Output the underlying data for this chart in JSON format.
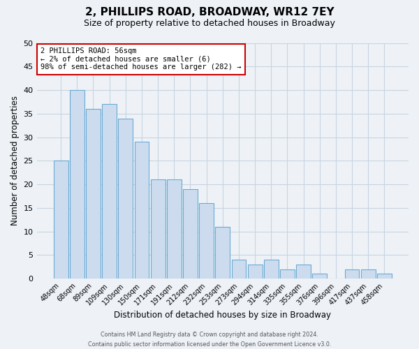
{
  "title": "2, PHILLIPS ROAD, BROADWAY, WR12 7EY",
  "subtitle": "Size of property relative to detached houses in Broadway",
  "xlabel": "Distribution of detached houses by size in Broadway",
  "ylabel": "Number of detached properties",
  "bar_labels": [
    "48sqm",
    "68sqm",
    "89sqm",
    "109sqm",
    "130sqm",
    "150sqm",
    "171sqm",
    "191sqm",
    "212sqm",
    "232sqm",
    "253sqm",
    "273sqm",
    "294sqm",
    "314sqm",
    "335sqm",
    "355sqm",
    "376sqm",
    "396sqm",
    "417sqm",
    "437sqm",
    "458sqm"
  ],
  "bar_values": [
    25,
    40,
    36,
    37,
    34,
    29,
    21,
    21,
    19,
    16,
    11,
    4,
    3,
    4,
    2,
    3,
    1,
    0,
    2,
    2,
    1
  ],
  "bar_color": "#ccdcee",
  "bar_edge_color": "#6aaad4",
  "ylim": [
    0,
    50
  ],
  "yticks": [
    0,
    5,
    10,
    15,
    20,
    25,
    30,
    35,
    40,
    45,
    50
  ],
  "annotation_title": "2 PHILLIPS ROAD: 56sqm",
  "annotation_line1": "← 2% of detached houses are smaller (6)",
  "annotation_line2": "98% of semi-detached houses are larger (282) →",
  "annotation_box_facecolor": "#ffffff",
  "annotation_box_edgecolor": "#cc0000",
  "footer_line1": "Contains HM Land Registry data © Crown copyright and database right 2024.",
  "footer_line2": "Contains public sector information licensed under the Open Government Licence v3.0.",
  "grid_color": "#c8d4e0",
  "background_color": "#eef2f7",
  "title_fontsize": 11,
  "subtitle_fontsize": 9,
  "axis_label_fontsize": 8.5,
  "tick_fontsize": 8,
  "xtick_fontsize": 7
}
